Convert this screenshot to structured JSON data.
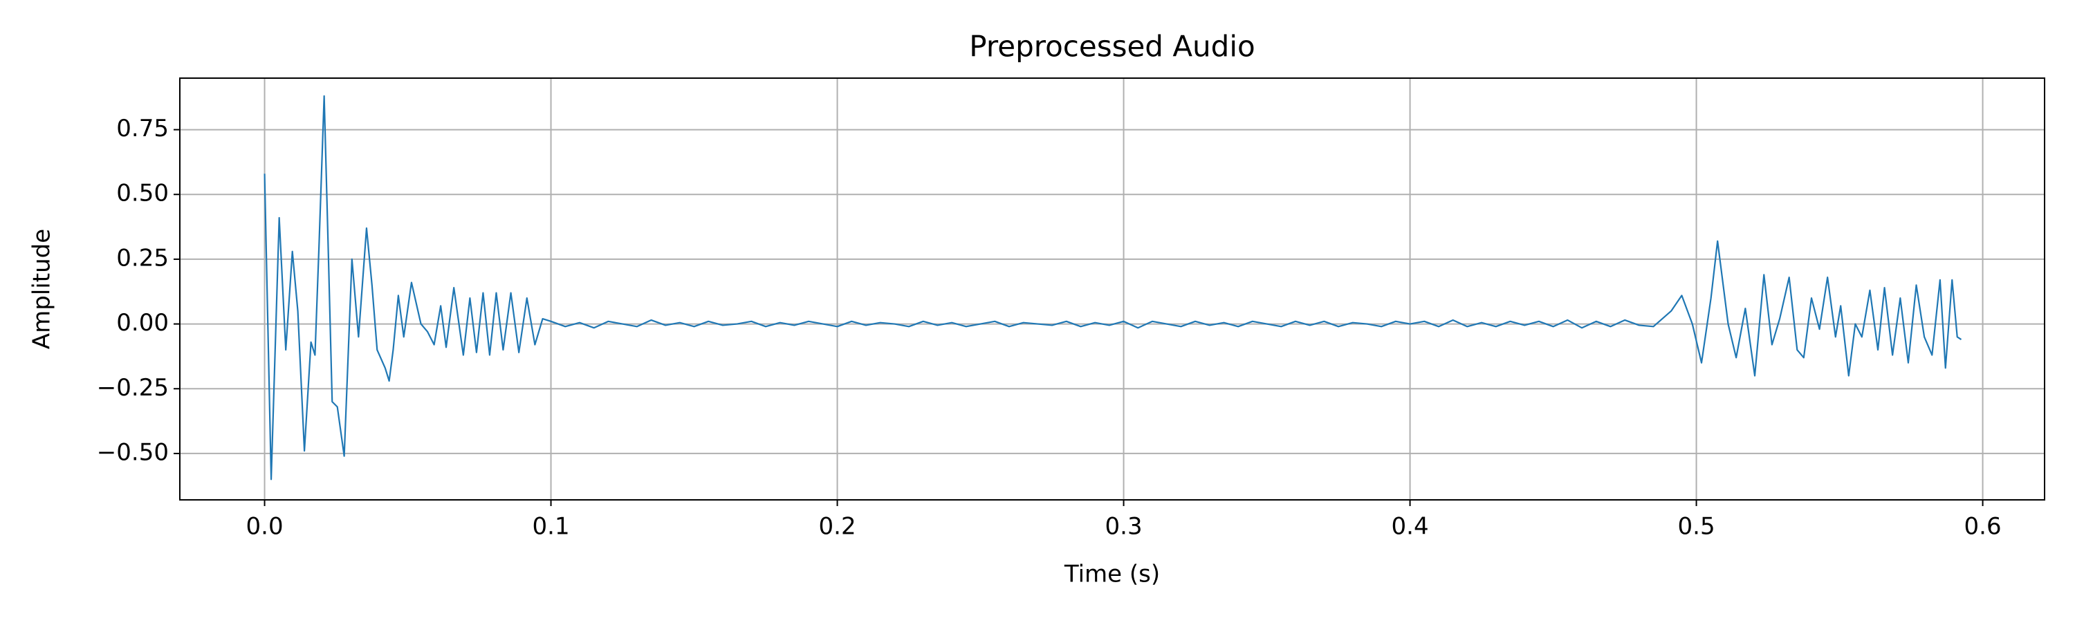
{
  "chart_data": {
    "type": "line",
    "title": "Preprocessed Audio",
    "xlabel": "Time (s)",
    "ylabel": "Amplitude",
    "color": "#1f77b4",
    "grid": true,
    "xlim": [
      -0.0296,
      0.6216
    ],
    "ylim": [
      -0.679,
      0.949
    ],
    "xticks": [
      {
        "value": 0,
        "label": "0.0"
      },
      0.1,
      0.2,
      0.3,
      0.4,
      0.5,
      0.6
    ],
    "yticks": [
      {
        "value": -0.5,
        "label": "−0.50"
      },
      {
        "value": -0.25,
        "label": "−0.25"
      },
      {
        "value": 0,
        "label": "0.00"
      },
      0.25,
      {
        "value": 0.5,
        "label": "0.50"
      },
      0.75
    ],
    "x": [
      0,
      0.0023,
      0.0051,
      0.0074,
      0.0097,
      0.0116,
      0.0139,
      0.0162,
      0.0176,
      0.019,
      0.0208,
      0.0222,
      0.0236,
      0.0254,
      0.0278,
      0.0305,
      0.0328,
      0.0356,
      0.0375,
      0.0393,
      0.0421,
      0.0435,
      0.0449,
      0.0467,
      0.0486,
      0.0513,
      0.0546,
      0.0569,
      0.0592,
      0.0615,
      0.0634,
      0.0661,
      0.0694,
      0.0717,
      0.074,
      0.0763,
      0.0786,
      0.0809,
      0.0833,
      0.086,
      0.0888,
      0.0916,
      0.0944,
      0.0971,
      0.1,
      0.105,
      0.11,
      0.115,
      0.12,
      0.125,
      0.13,
      0.135,
      0.14,
      0.145,
      0.15,
      0.155,
      0.16,
      0.165,
      0.17,
      0.175,
      0.18,
      0.185,
      0.19,
      0.195,
      0.2,
      0.205,
      0.21,
      0.215,
      0.22,
      0.225,
      0.23,
      0.235,
      0.24,
      0.245,
      0.25,
      0.255,
      0.26,
      0.265,
      0.27,
      0.275,
      0.28,
      0.285,
      0.29,
      0.295,
      0.3,
      0.305,
      0.31,
      0.315,
      0.32,
      0.325,
      0.33,
      0.335,
      0.34,
      0.345,
      0.35,
      0.355,
      0.36,
      0.365,
      0.37,
      0.375,
      0.38,
      0.385,
      0.39,
      0.395,
      0.4,
      0.405,
      0.41,
      0.415,
      0.42,
      0.425,
      0.43,
      0.435,
      0.44,
      0.445,
      0.45,
      0.455,
      0.46,
      0.465,
      0.47,
      0.475,
      0.48,
      0.485,
      0.4912,
      0.4949,
      0.4986,
      0.5018,
      0.5051,
      0.5074,
      0.5111,
      0.5139,
      0.5171,
      0.5204,
      0.5236,
      0.5264,
      0.5291,
      0.5324,
      0.5352,
      0.5375,
      0.5402,
      0.543,
      0.5458,
      0.5486,
      0.5504,
      0.5532,
      0.5555,
      0.5578,
      0.5606,
      0.5634,
      0.5657,
      0.5685,
      0.5712,
      0.574,
      0.5768,
      0.5796,
      0.5823,
      0.5851,
      0.587,
      0.5893,
      0.5911,
      0.5925
    ],
    "values": [
      0.58,
      -0.6,
      0.41,
      -0.1,
      0.28,
      0.05,
      -0.49,
      -0.07,
      -0.12,
      0.3,
      0.88,
      0.3,
      -0.3,
      -0.32,
      -0.51,
      0.25,
      -0.05,
      0.37,
      0.15,
      -0.1,
      -0.17,
      -0.22,
      -0.1,
      0.11,
      -0.05,
      0.16,
      0.0,
      -0.03,
      -0.08,
      0.07,
      -0.09,
      0.14,
      -0.12,
      0.1,
      -0.11,
      0.12,
      -0.12,
      0.12,
      -0.1,
      0.12,
      -0.11,
      0.1,
      -0.08,
      0.02,
      0.01,
      -0.01,
      0.005,
      -0.015,
      0.01,
      0.0,
      -0.01,
      0.015,
      -0.005,
      0.005,
      -0.01,
      0.01,
      -0.005,
      0.0,
      0.01,
      -0.01,
      0.005,
      -0.005,
      0.01,
      0.0,
      -0.01,
      0.01,
      -0.005,
      0.005,
      0.0,
      -0.01,
      0.01,
      -0.005,
      0.005,
      -0.01,
      0.0,
      0.01,
      -0.01,
      0.005,
      0.0,
      -0.005,
      0.01,
      -0.01,
      0.005,
      -0.005,
      0.01,
      -0.015,
      0.01,
      0.0,
      -0.01,
      0.01,
      -0.005,
      0.005,
      -0.01,
      0.01,
      0.0,
      -0.01,
      0.01,
      -0.005,
      0.01,
      -0.01,
      0.005,
      0.0,
      -0.01,
      0.01,
      0.0,
      0.01,
      -0.01,
      0.015,
      -0.01,
      0.005,
      -0.01,
      0.01,
      -0.005,
      0.01,
      -0.01,
      0.015,
      -0.015,
      0.01,
      -0.01,
      0.015,
      -0.005,
      -0.01,
      0.05,
      0.11,
      0.0,
      -0.15,
      0.1,
      0.32,
      0.0,
      -0.13,
      0.06,
      -0.2,
      0.19,
      -0.08,
      0.02,
      0.18,
      -0.1,
      -0.13,
      0.1,
      -0.02,
      0.18,
      -0.05,
      0.07,
      -0.2,
      0.0,
      -0.05,
      0.13,
      -0.1,
      0.14,
      -0.12,
      0.1,
      -0.15,
      0.15,
      -0.05,
      -0.12,
      0.17,
      -0.17,
      0.17,
      -0.05,
      -0.06
    ]
  }
}
